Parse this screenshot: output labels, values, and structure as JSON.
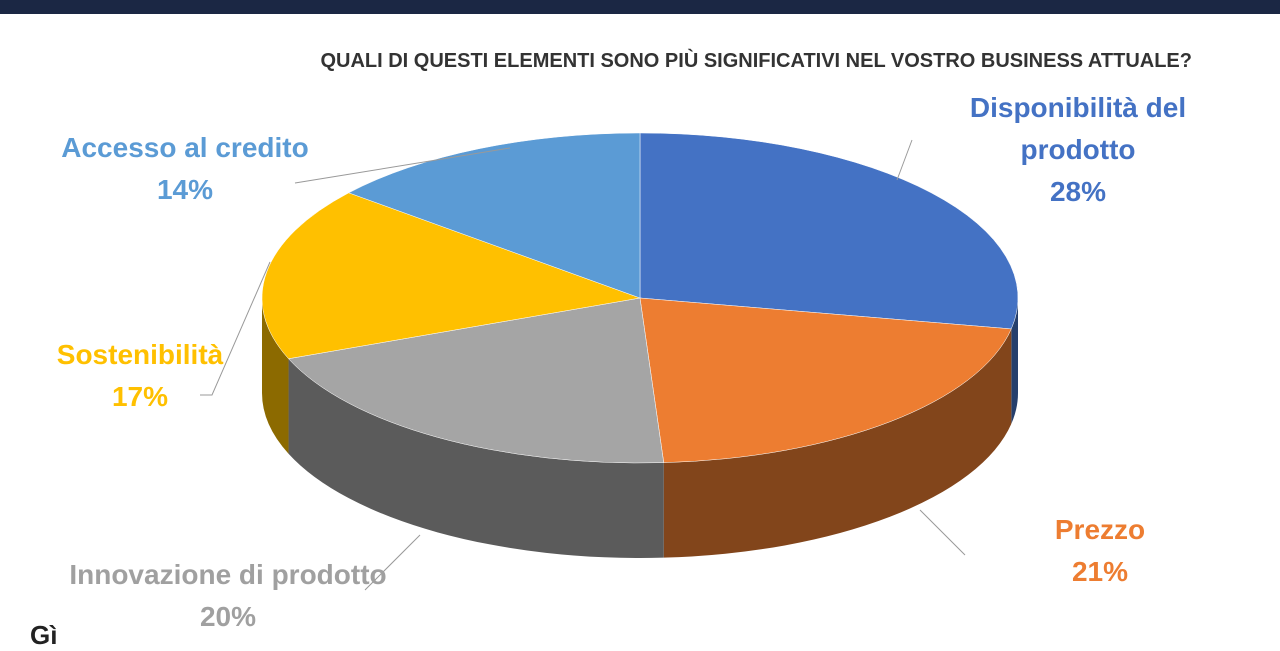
{
  "chart_data": {
    "type": "pie",
    "title": "QUALI DI QUESTI ELEMENTI SONO PIÙ SIGNIFICATIVI NEL VOSTRO BUSINESS ATTUALE?",
    "categories": [
      "Disponibilità del prodotto",
      "Prezzo",
      "Innovazione di prodotto",
      "Sostenibilità",
      "Accesso al credito"
    ],
    "values": [
      28,
      21,
      20,
      17,
      14
    ],
    "value_labels": [
      "28%",
      "21%",
      "20%",
      "17%",
      "14%"
    ],
    "colors": [
      "#4472c4",
      "#ed7d31",
      "#a5a5a5",
      "#ffc000",
      "#5b9bd5"
    ]
  },
  "logo": "Gì"
}
